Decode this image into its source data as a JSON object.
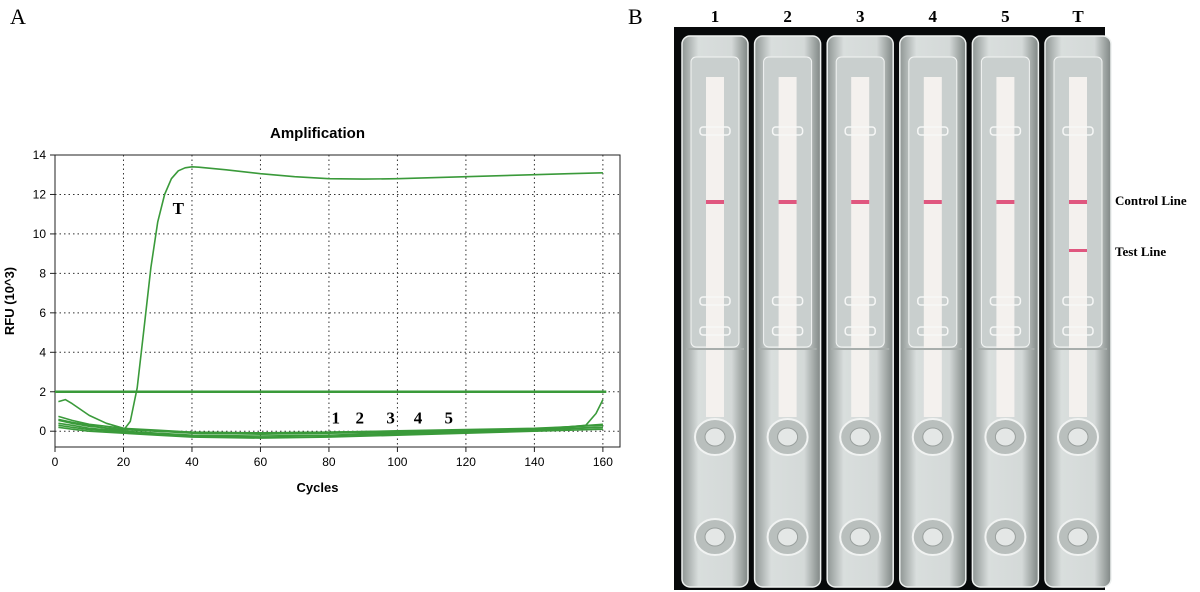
{
  "panel_a": {
    "letter": "A"
  },
  "panel_b": {
    "letter": "B",
    "lanes": [
      {
        "label": "1",
        "test_line": false
      },
      {
        "label": "2",
        "test_line": false
      },
      {
        "label": "3",
        "test_line": false
      },
      {
        "label": "4",
        "test_line": false
      },
      {
        "label": "5",
        "test_line": false
      },
      {
        "label": "T",
        "test_line": true
      }
    ],
    "control_line_label": "Control Line",
    "test_line_label": "Test Line",
    "line_color": "#e0577f"
  },
  "chart_data": {
    "type": "line",
    "title": "Amplification",
    "xlabel": "Cycles",
    "ylabel": "RFU (10^3)",
    "xlim": [
      0,
      165
    ],
    "ylim": [
      -0.8,
      14
    ],
    "xticks": [
      0,
      20,
      40,
      60,
      80,
      100,
      120,
      140,
      160
    ],
    "yticks": [
      0,
      2,
      4,
      6,
      8,
      10,
      12,
      14
    ],
    "grid": true,
    "line_color": "#3a9a3a",
    "threshold": 2,
    "series": [
      {
        "name": "T",
        "x": [
          1,
          5,
          10,
          15,
          20,
          22,
          24,
          26,
          28,
          30,
          32,
          34,
          36,
          38,
          40,
          42,
          50,
          60,
          70,
          80,
          90,
          100,
          110,
          120,
          130,
          140,
          150,
          160
        ],
        "y": [
          0.6,
          0.45,
          0.3,
          0.15,
          0.05,
          0.5,
          2.2,
          5.2,
          8.3,
          10.6,
          12.0,
          12.8,
          13.2,
          13.35,
          13.4,
          13.38,
          13.25,
          13.05,
          12.9,
          12.8,
          12.78,
          12.8,
          12.85,
          12.9,
          12.95,
          13.0,
          13.05,
          13.1
        ]
      },
      {
        "name": "",
        "x": [
          1,
          3,
          5,
          10,
          15,
          20,
          25,
          40,
          60,
          80,
          100,
          120,
          140,
          155,
          158,
          160
        ],
        "y": [
          1.5,
          1.6,
          1.4,
          0.8,
          0.4,
          0.15,
          0.05,
          -0.1,
          -0.15,
          -0.1,
          -0.05,
          0.0,
          0.05,
          0.3,
          0.9,
          1.6
        ]
      },
      {
        "name": "1",
        "x": [
          1,
          5,
          10,
          20,
          30,
          40,
          60,
          80,
          100,
          120,
          140,
          160
        ],
        "y": [
          0.75,
          0.55,
          0.35,
          0.15,
          0.05,
          -0.05,
          -0.1,
          -0.05,
          0.0,
          0.05,
          0.1,
          0.2
        ]
      },
      {
        "name": "2",
        "x": [
          1,
          5,
          10,
          20,
          30,
          40,
          60,
          80,
          100,
          120,
          140,
          160
        ],
        "y": [
          0.55,
          0.4,
          0.25,
          0.08,
          0.0,
          -0.05,
          -0.08,
          -0.05,
          0.02,
          0.08,
          0.15,
          0.3
        ]
      },
      {
        "name": "3",
        "x": [
          1,
          5,
          10,
          20,
          30,
          40,
          60,
          80,
          100,
          120,
          140,
          160
        ],
        "y": [
          0.4,
          0.3,
          0.15,
          0.0,
          -0.1,
          -0.2,
          -0.25,
          -0.2,
          -0.1,
          0.0,
          0.1,
          0.35
        ]
      },
      {
        "name": "4",
        "x": [
          1,
          5,
          10,
          20,
          30,
          40,
          60,
          80,
          100,
          120,
          140,
          160
        ],
        "y": [
          0.3,
          0.2,
          0.08,
          -0.05,
          -0.15,
          -0.25,
          -0.32,
          -0.28,
          -0.15,
          -0.05,
          0.05,
          0.2
        ]
      },
      {
        "name": "5",
        "x": [
          1,
          5,
          10,
          20,
          30,
          40,
          60,
          80,
          100,
          120,
          140,
          160
        ],
        "y": [
          0.2,
          0.1,
          0.0,
          -0.1,
          -0.2,
          -0.3,
          -0.35,
          -0.3,
          -0.2,
          -0.1,
          0.0,
          0.1
        ]
      }
    ],
    "annotations": [
      {
        "text": "T",
        "x": 36,
        "y": 11.0
      },
      {
        "text": "1",
        "x": 82,
        "y": 0.4
      },
      {
        "text": "2",
        "x": 89,
        "y": 0.4
      },
      {
        "text": "3",
        "x": 98,
        "y": 0.4
      },
      {
        "text": "4",
        "x": 106,
        "y": 0.4
      },
      {
        "text": "5",
        "x": 115,
        "y": 0.4
      }
    ]
  }
}
